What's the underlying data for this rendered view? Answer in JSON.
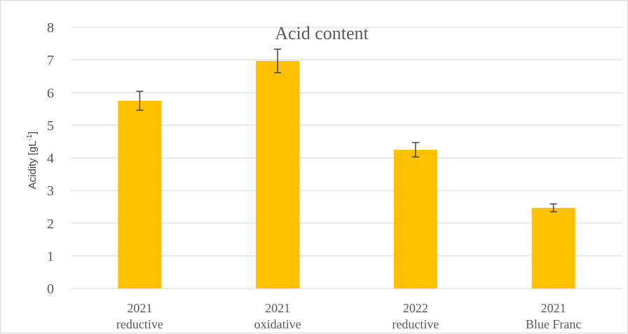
{
  "chart_data": {
    "type": "bar",
    "title": "Acid content",
    "ylabel": "Acidity [gL",
    "ylabel_sup": "-1",
    "ylabel_close": "]",
    "xlabel": "",
    "ylim": [
      0,
      8
    ],
    "yticks": [
      "0",
      "1",
      "2",
      "3",
      "4",
      "5",
      "6",
      "7",
      "8"
    ],
    "categories": [
      {
        "line1": "2021",
        "line2": "reductive"
      },
      {
        "line1": "2021",
        "line2": "oxidative"
      },
      {
        "line1": "2022",
        "line2": "reductive"
      },
      {
        "line1": "2021",
        "line2": "Blue Franc"
      }
    ],
    "values": [
      5.75,
      6.97,
      4.25,
      2.47
    ],
    "errors": [
      0.29,
      0.36,
      0.22,
      0.12
    ],
    "grid": true,
    "legend": "none",
    "colors": {
      "bar": "#FFC000",
      "grid": "#d9d9d9",
      "error": "#404040",
      "text": "#595959"
    }
  }
}
